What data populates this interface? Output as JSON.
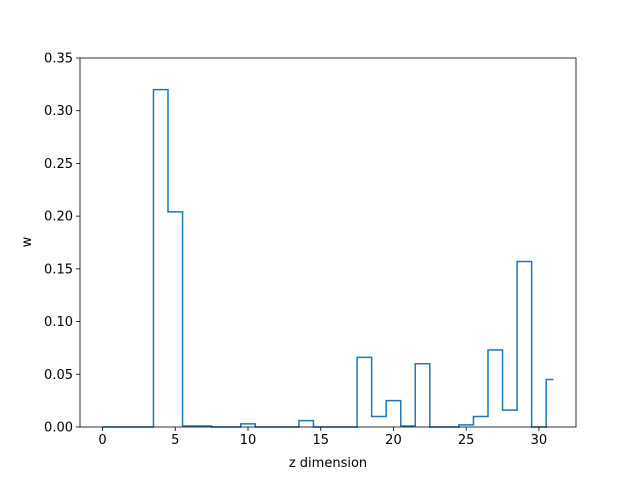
{
  "chart_data": {
    "type": "line",
    "drawstyle": "steps-mid",
    "title": "",
    "xlabel": "z dimension",
    "ylabel": "w",
    "xlim": [
      -1.55,
      32.55
    ],
    "ylim": [
      0,
      0.35
    ],
    "xticks": [
      0,
      5,
      10,
      15,
      20,
      25,
      30
    ],
    "yticks": [
      0.0,
      0.05,
      0.1,
      0.15,
      0.2,
      0.25,
      0.3,
      0.35
    ],
    "xtick_labels": [
      "0",
      "5",
      "10",
      "15",
      "20",
      "25",
      "30"
    ],
    "ytick_labels": [
      "0.00",
      "0.05",
      "0.10",
      "0.15",
      "0.20",
      "0.25",
      "0.30",
      "0.35"
    ],
    "grid": false,
    "legend": null,
    "line_color": "#1f77b4",
    "series": [
      {
        "x": [
          0,
          1,
          2,
          3,
          4,
          5,
          6,
          7,
          8,
          9,
          10,
          11,
          12,
          13,
          14,
          15,
          16,
          17,
          18,
          19,
          20,
          21,
          22,
          23,
          24,
          25,
          26,
          27,
          28,
          29,
          30,
          31
        ],
        "values": [
          0.0,
          0.0,
          0.0,
          0.0,
          0.32,
          0.204,
          0.001,
          0.001,
          0.0,
          0.0,
          0.003,
          0.0,
          0.0,
          0.0,
          0.006,
          0.0,
          0.0,
          0.0,
          0.066,
          0.01,
          0.025,
          0.001,
          0.06,
          0.0,
          0.0,
          0.002,
          0.01,
          0.073,
          0.016,
          0.157,
          0.0,
          0.045
        ]
      }
    ]
  }
}
